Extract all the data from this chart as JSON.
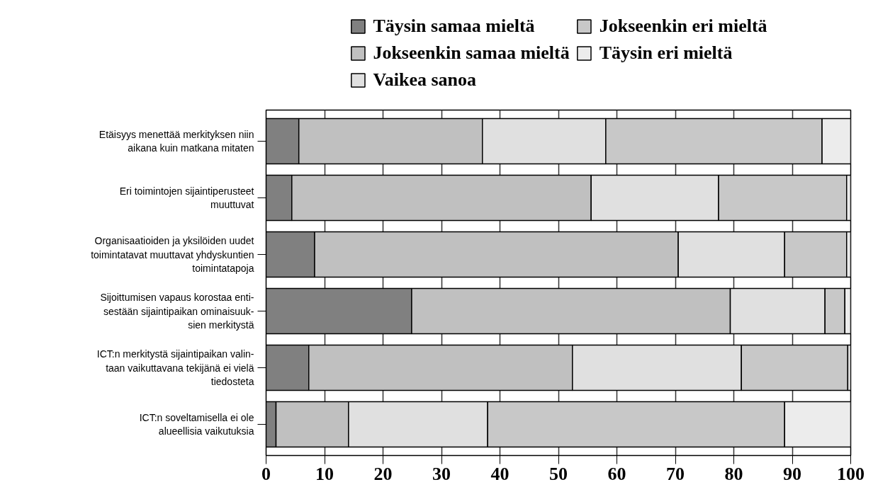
{
  "chart_data": {
    "type": "bar",
    "orientation": "horizontal",
    "stacked": true,
    "categories": [
      "Etäisyys menettää merkityksen niin\naikana kuin matkana mitaten",
      "Eri toimintojen sijaintiperusteet\nmuuttuvat",
      "Organisaatioiden ja yksilöiden uudet\ntoimintatavat muuttavat yhdyskuntien\ntoimintatapoja",
      "Sijoittumisen vapaus korostaa enti-\nsestään sijaintipaikan ominaisuuk-\nsien merkitystä",
      "ICT:n merkitystä sijaintipaikan valin-\ntaan vaikuttavana tekijänä ei vielä\ntiedosteta",
      "ICT:n soveltamisella ei ole\nalueellisia vaikutuksia"
    ],
    "series": [
      {
        "name": "Täysin samaa mieltä",
        "color": "#808080",
        "values": [
          5.6,
          4.4,
          8.3,
          24.9,
          7.3,
          1.7
        ]
      },
      {
        "name": "Jokseenkin samaa mieltä",
        "color": "#c0c0c0",
        "values": [
          31.4,
          51.2,
          62.2,
          54.5,
          45.1,
          12.4
        ]
      },
      {
        "name": "Vaikea sanoa",
        "color": "#e0e0e0",
        "values": [
          21.1,
          21.8,
          18.2,
          16.2,
          28.9,
          23.8
        ]
      },
      {
        "name": "Jokseenkin eri mieltä",
        "color": "#c8c8c8",
        "values": [
          37.0,
          21.9,
          10.6,
          3.4,
          18.2,
          50.8
        ]
      },
      {
        "name": "Täysin eri mieltä",
        "color": "#ececec",
        "values": [
          4.9,
          0.7,
          0.7,
          1.0,
          0.5,
          11.3
        ]
      }
    ],
    "xlim": [
      0,
      100
    ],
    "xticks": [
      0,
      10,
      20,
      30,
      40,
      50,
      60,
      70,
      80,
      90,
      100
    ],
    "grid": "x",
    "legend": "top"
  }
}
